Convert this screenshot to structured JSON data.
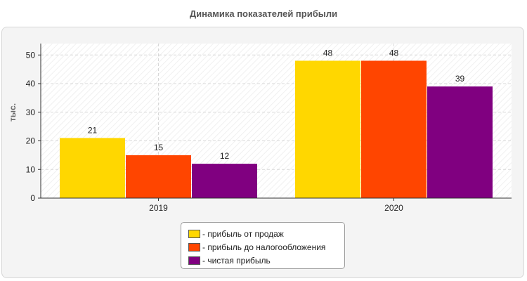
{
  "chart_data": {
    "type": "bar",
    "title": "Динамика показателей прибыли",
    "xlabel": "",
    "ylabel": "тыс.",
    "categories": [
      "2019",
      "2020"
    ],
    "ylim": [
      0,
      54
    ],
    "yticks": [
      0,
      10,
      20,
      30,
      40,
      50
    ],
    "grid": true,
    "legend_position": "bottom",
    "series": [
      {
        "name": "- прибыль от продаж",
        "color": "#ffd700",
        "values": [
          21,
          48
        ]
      },
      {
        "name": "- прибыль до налогообложения",
        "color": "#ff4500",
        "values": [
          15,
          48
        ]
      },
      {
        "name": "- чистая прибыль",
        "color": "#800080",
        "values": [
          12,
          39
        ]
      }
    ]
  }
}
